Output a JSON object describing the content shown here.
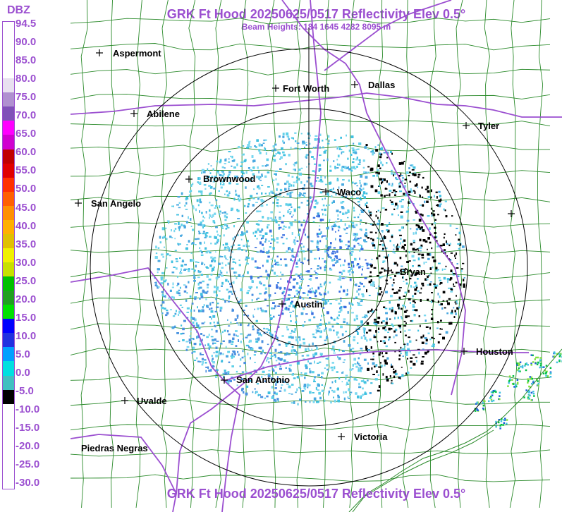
{
  "header": {
    "title": "GRK Ft Hood 20250625/0517 Reflectivity Elev 0.5°",
    "subtitle": "Beam Heights: 184 1645 4282 8095 m"
  },
  "footer": {
    "title": "GRK Ft Hood 20250625/0517 Reflectivity Elev 0.5°"
  },
  "legend": {
    "unit": "DBZ",
    "ticks": [
      "94.5",
      "90.0",
      "85.0",
      "80.0",
      "75.0",
      "70.0",
      "65.0",
      "60.0",
      "55.0",
      "50.0",
      "45.0",
      "40.0",
      "35.0",
      "30.0",
      "25.0",
      "20.0",
      "15.0",
      "10.0",
      "5.0",
      "0.0",
      "-5.0",
      "-10.0",
      "-15.0",
      "-20.0",
      "-25.0",
      "-30.0"
    ],
    "colors": [
      "#ffffff",
      "#ffffff",
      "#ffffff",
      "#ffffff",
      "#e8e0f0",
      "#b090d0",
      "#8050b8",
      "#ff00ff",
      "#d000d0",
      "#c00000",
      "#e00000",
      "#ff3000",
      "#ff6000",
      "#ff9000",
      "#ffb000",
      "#e0c000",
      "#f0f000",
      "#c8e000",
      "#00c000",
      "#20a020",
      "#00e000",
      "#0000ff",
      "#2030e0",
      "#00a0ff",
      "#00e0e0",
      "#40c0c0",
      "#000000",
      "#ffffff",
      "#ffffff",
      "#ffffff",
      "#ffffff",
      "#ffffff",
      "#ffffff"
    ]
  },
  "radar": {
    "site": "GRK",
    "range_rings": 4
  },
  "cities": [
    {
      "name": "Aspermont"
    },
    {
      "name": "Fort Worth"
    },
    {
      "name": "Dallas"
    },
    {
      "name": "Abilene"
    },
    {
      "name": "Tyler"
    },
    {
      "name": "Brownwood"
    },
    {
      "name": "Waco"
    },
    {
      "name": "San Angelo"
    },
    {
      "name": "Bryan"
    },
    {
      "name": "Austin"
    },
    {
      "name": "Houston"
    },
    {
      "name": "San Antonio"
    },
    {
      "name": "Uvalde"
    },
    {
      "name": "Victoria"
    },
    {
      "name": "Piedras Negras"
    }
  ]
}
